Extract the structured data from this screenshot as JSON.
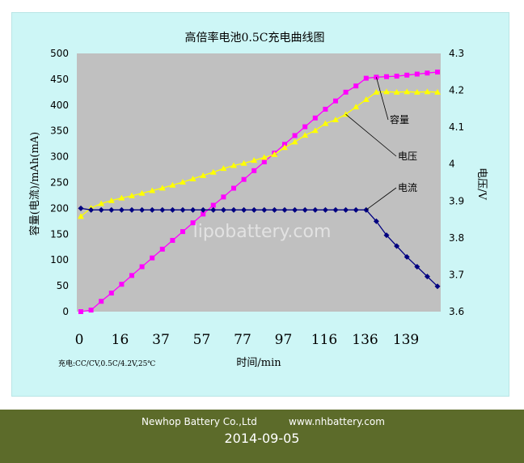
{
  "chart_data": {
    "type": "line",
    "title": "高倍率电池0.5C充电曲线图",
    "xlabel": "时间/min",
    "ylabel_left": "容量(电流)/mAh(mA)",
    "ylabel_right": "电压/V",
    "note": "充电:CC/CV,0.5C/4.2V,25℃",
    "watermark": "lipobattery.com",
    "x_tick_labels": [
      "0",
      "16",
      "37",
      "57",
      "77",
      "97",
      "116",
      "136",
      "139"
    ],
    "y_left_ticks": [
      "0",
      "50",
      "100",
      "150",
      "200",
      "250",
      "300",
      "350",
      "400",
      "450",
      "500"
    ],
    "y_right_ticks": [
      "3.6",
      "3.7",
      "3.8",
      "3.9",
      "4",
      "4.1",
      "4.2",
      "4.3"
    ],
    "ylim_left": [
      0,
      500
    ],
    "ylim_right": [
      3.6,
      4.3
    ],
    "grid": false,
    "plot_background": "#c0c0c0",
    "series": [
      {
        "name": "容量",
        "axis": "left",
        "color": "#ff00ff",
        "marker": "square",
        "values": [
          0,
          3,
          20,
          36,
          53,
          70,
          87,
          104,
          121,
          138,
          155,
          172,
          189,
          206,
          222,
          239,
          256,
          273,
          290,
          307,
          324,
          341,
          358,
          375,
          392,
          408,
          425,
          437,
          452,
          454,
          455,
          456,
          458,
          460,
          462,
          464
        ]
      },
      {
        "name": "电压",
        "axis": "right",
        "color": "#ffff00",
        "marker": "triangle",
        "values": [
          3.858,
          3.881,
          3.893,
          3.901,
          3.908,
          3.914,
          3.921,
          3.928,
          3.935,
          3.943,
          3.951,
          3.96,
          3.969,
          3.978,
          3.988,
          3.996,
          4.002,
          4.01,
          4.018,
          4.026,
          4.045,
          4.06,
          4.078,
          4.091,
          4.11,
          4.12,
          4.135,
          4.155,
          4.175,
          4.195,
          4.196,
          4.195,
          4.196,
          4.195,
          4.196,
          4.195
        ]
      },
      {
        "name": "电流",
        "axis": "left",
        "color": "#000080",
        "marker": "diamond",
        "values": [
          200,
          197,
          197,
          197,
          197,
          197,
          197,
          197,
          197,
          197,
          197,
          197,
          197,
          197,
          197,
          197,
          197,
          197,
          197,
          197,
          197,
          197,
          197,
          197,
          197,
          197,
          197,
          197,
          197,
          175,
          148,
          127,
          106,
          87,
          68,
          49
        ]
      }
    ],
    "annotations": [
      {
        "text": "容量",
        "series": "容量"
      },
      {
        "text": "电压",
        "series": "电压"
      },
      {
        "text": "电流",
        "series": "电流"
      }
    ]
  },
  "footer": {
    "company": "Newhop Battery Co.,Ltd",
    "website": "www.nhbattery.com",
    "date": "2014-09-05",
    "background": "#5c6b2a"
  }
}
